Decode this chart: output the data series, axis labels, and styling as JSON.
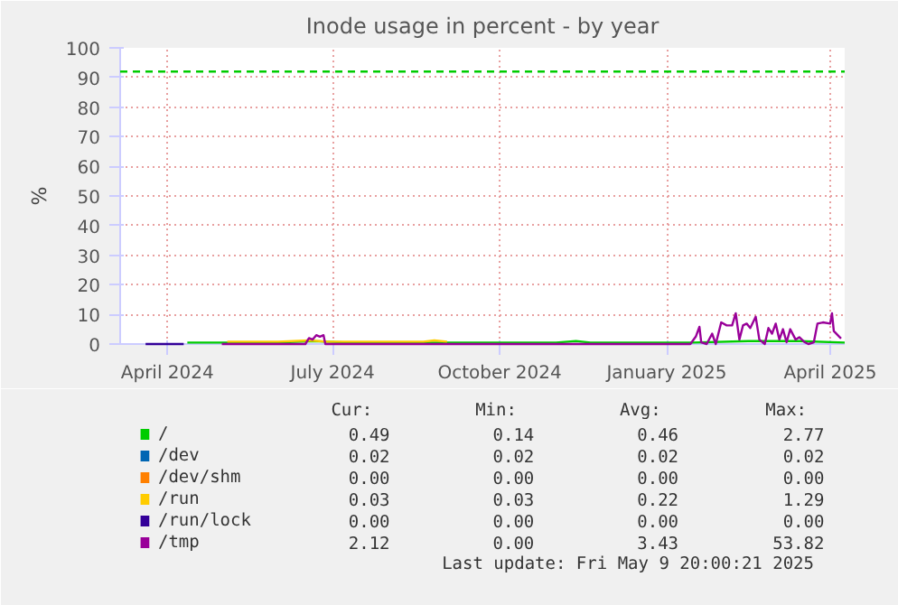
{
  "chart_data": {
    "type": "line",
    "title": "Inode usage in percent - by year",
    "ylabel": "%",
    "xlim": [
      "2024-03-06",
      "2025-04-09"
    ],
    "ylim": [
      0,
      100
    ],
    "xticks": [
      {
        "value": "2024-04-01",
        "label": "April 2024"
      },
      {
        "value": "2024-07-01",
        "label": "July 2024"
      },
      {
        "value": "2024-10-01",
        "label": "October 2024"
      },
      {
        "value": "2025-01-01",
        "label": "January 2025"
      },
      {
        "value": "2025-04-01",
        "label": "April 2025"
      }
    ],
    "yticks": [
      0,
      10,
      20,
      30,
      40,
      50,
      60,
      70,
      80,
      90,
      100
    ],
    "grid": true,
    "legend": "bottom",
    "marker": "none",
    "line_style": "solid",
    "ref_lines": [
      {
        "axis": "y",
        "value": 92,
        "color": "#00cc00",
        "line_style": "dashed"
      }
    ],
    "series": [
      {
        "name": "/",
        "color": "#00cc00",
        "x": [
          "2024-04-12",
          "2024-05-01",
          "2024-06-01",
          "2024-06-20",
          "2024-07-10",
          "2024-08-01",
          "2024-09-01",
          "2024-10-01",
          "2024-11-01",
          "2024-11-12",
          "2024-11-20",
          "2024-12-15",
          "2025-01-15",
          "2025-02-15",
          "2025-03-15",
          "2025-04-09"
        ],
        "values": [
          0.5,
          0.5,
          0.5,
          1,
          0.5,
          0.5,
          0.5,
          0.5,
          0.5,
          1,
          0.5,
          0.5,
          0.5,
          1,
          1,
          0.5
        ]
      },
      {
        "name": "/dev",
        "color": "#0066b3"
      },
      {
        "name": "/dev/shm",
        "color": "#ff8000"
      },
      {
        "name": "/run",
        "color": "#ffcc00",
        "x": [
          "2024-05-04",
          "2024-06-01",
          "2024-06-18",
          "2024-06-28",
          "2024-07-15",
          "2024-08-20",
          "2024-08-26",
          "2024-09-02"
        ],
        "values": [
          0.8,
          0.8,
          1.2,
          0.8,
          0.8,
          0.8,
          1.2,
          0.8
        ]
      },
      {
        "name": "/run/lock",
        "color": "#330099",
        "x": [
          "2024-03-20",
          "2024-04-10"
        ],
        "values": [
          0,
          0
        ]
      },
      {
        "name": "/tmp",
        "color": "#990099",
        "x": [
          "2024-05-01",
          "2024-06-16",
          "2024-06-18",
          "2024-06-20",
          "2024-06-22",
          "2024-06-24",
          "2024-06-26",
          "2024-06-27",
          "2025-01-14",
          "2025-01-17",
          "2025-01-19",
          "2025-01-20",
          "2025-01-23",
          "2025-01-26",
          "2025-01-28",
          "2025-01-31",
          "2025-02-03",
          "2025-02-06",
          "2025-02-08",
          "2025-02-10",
          "2025-02-12",
          "2025-02-14",
          "2025-02-16",
          "2025-02-19",
          "2025-02-21",
          "2025-02-24",
          "2025-02-26",
          "2025-02-28",
          "2025-03-02",
          "2025-03-04",
          "2025-03-06",
          "2025-03-08",
          "2025-03-10",
          "2025-03-13",
          "2025-03-15",
          "2025-03-18",
          "2025-03-20",
          "2025-03-23",
          "2025-03-25",
          "2025-03-28",
          "2025-04-01",
          "2025-04-02",
          "2025-04-03",
          "2025-04-06",
          "2025-04-07"
        ],
        "values": [
          0,
          0,
          2,
          1.5,
          3,
          2.5,
          3,
          0,
          0,
          2.5,
          5.8,
          0.6,
          0,
          3.5,
          0,
          7.3,
          6.3,
          6.3,
          10.4,
          1.5,
          6.3,
          6.9,
          5.4,
          9.2,
          1.5,
          0,
          5.4,
          3.5,
          6.9,
          1.5,
          5,
          0.6,
          5,
          1.5,
          2.3,
          0.6,
          0,
          0.6,
          6.9,
          7.3,
          6.9,
          10.4,
          4.4,
          2.5,
          1.9
        ]
      }
    ],
    "annotations": [
      "Cur:",
      "Min:",
      "Avg:",
      "Max:",
      "0.49",
      "0.14",
      "0.46",
      "2.77",
      "0.02",
      "0.02",
      "0.02",
      "0.02",
      "0.00",
      "0.00",
      "0.00",
      "0.00",
      "0.03",
      "0.03",
      "0.22",
      "1.29",
      "0.00",
      "0.00",
      "0.00",
      "0.00",
      "2.12",
      "0.00",
      "3.43",
      "53.82",
      "Last update: Fri May  9 20:00:21 2025"
    ]
  }
}
